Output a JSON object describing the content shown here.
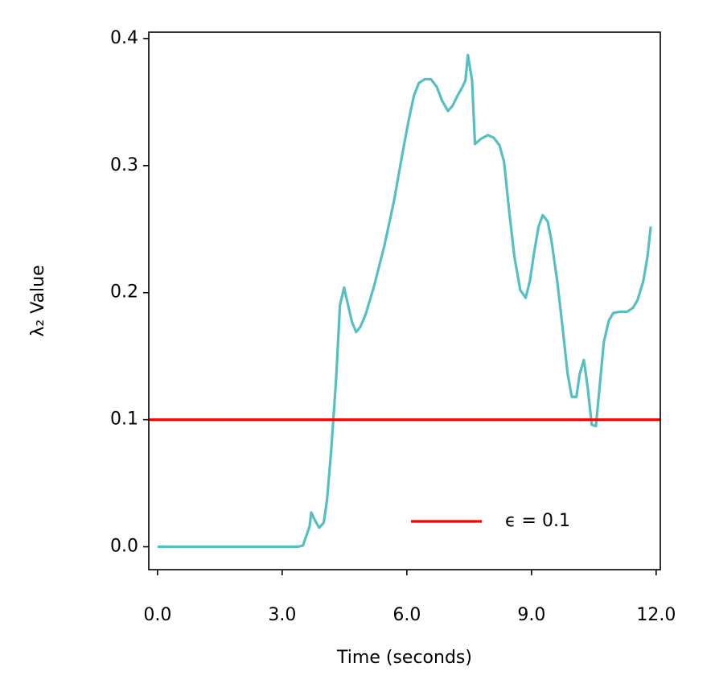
{
  "chart_data": {
    "type": "line",
    "xlabel": "Time (seconds)",
    "ylabel": "λ₂ Value",
    "x": [
      0,
      3.37,
      3.5,
      3.66,
      3.7,
      3.77,
      3.89,
      4.0,
      4.08,
      4.18,
      4.3,
      4.39,
      4.49,
      4.58,
      4.68,
      4.78,
      4.88,
      5.01,
      5.21,
      5.46,
      5.69,
      5.88,
      6.04,
      6.17,
      6.29,
      6.43,
      6.58,
      6.72,
      6.85,
      6.99,
      7.1,
      7.22,
      7.34,
      7.41,
      7.47,
      7.57,
      7.64,
      7.78,
      7.95,
      8.09,
      8.23,
      8.34,
      8.46,
      8.59,
      8.73,
      8.86,
      8.96,
      9.06,
      9.17,
      9.27,
      9.39,
      9.48,
      9.62,
      9.75,
      9.87,
      9.97,
      10.08,
      10.16,
      10.26,
      10.35,
      10.45,
      10.55,
      10.64,
      10.74,
      10.86,
      10.97,
      11.13,
      11.3,
      11.44,
      11.55,
      11.69,
      11.79,
      11.87
    ],
    "series": [
      {
        "color": "#56bfc1",
        "values": [
          0,
          0,
          0.001,
          0.016,
          0.027,
          0.022,
          0.015,
          0.019,
          0.037,
          0.076,
          0.133,
          0.19,
          0.204,
          0.191,
          0.177,
          0.169,
          0.173,
          0.183,
          0.205,
          0.237,
          0.272,
          0.307,
          0.335,
          0.355,
          0.365,
          0.368,
          0.368,
          0.362,
          0.351,
          0.343,
          0.347,
          0.355,
          0.362,
          0.367,
          0.387,
          0.367,
          0.317,
          0.321,
          0.324,
          0.322,
          0.316,
          0.303,
          0.265,
          0.228,
          0.202,
          0.196,
          0.209,
          0.231,
          0.252,
          0.261,
          0.256,
          0.241,
          0.209,
          0.172,
          0.136,
          0.118,
          0.118,
          0.136,
          0.147,
          0.126,
          0.096,
          0.095,
          0.126,
          0.161,
          0.178,
          0.184,
          0.185,
          0.185,
          0.188,
          0.194,
          0.209,
          0.228,
          0.252
        ]
      }
    ],
    "threshold": {
      "name": "ϵ = 0.1",
      "value": 0.1,
      "color": "#ff0000"
    },
    "xlim": [
      -0.21,
      12.1
    ],
    "xticks": [
      {
        "value": 0,
        "label": "0.0"
      },
      {
        "value": 3,
        "label": "3.0"
      },
      {
        "value": 6,
        "label": "6.0"
      },
      {
        "value": 9,
        "label": "9.0"
      },
      {
        "value": 12,
        "label": "12.0"
      }
    ],
    "ylim": [
      -0.018,
      0.405
    ],
    "yticks": [
      {
        "value": 0,
        "label": "0.0"
      },
      0.1,
      0.2,
      0.3,
      0.4
    ],
    "legend": "lower right",
    "grid": false
  }
}
